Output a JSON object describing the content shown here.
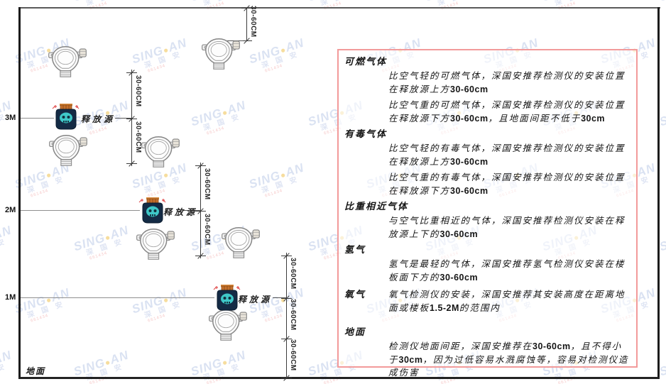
{
  "diagram": {
    "heights": [
      "3M",
      "2M",
      "1M"
    ],
    "ground_label": "地面",
    "dimension_label": "30-60CM",
    "release_source_label": "释放源"
  },
  "panel": {
    "border_color": "#f29a9a",
    "sections": [
      {
        "title": "可燃气体",
        "paragraphs": [
          "比空气轻的可燃气体，深国安推荐检测仪的安装位置在释放源上方30-60cm",
          "比空气重的可燃气体，深国安推荐检测仪的安装位置在释放源下方30-60cm，且地面间距不低于30cm"
        ]
      },
      {
        "title": "有毒气体",
        "paragraphs": [
          "比空气轻的有毒气体，深国安推荐检测仪的安装位置在释放源上方30-60cm",
          "比空气重的有毒气体，深国安推荐检测仪的安装位置在释放源下方30-60cm"
        ]
      },
      {
        "title": "比重相近气体",
        "paragraphs": [
          "与空气比重相近的气体，深国安推荐检测仪安装在释放源上下的30-60cm"
        ]
      },
      {
        "title": "氢气",
        "paragraphs": [
          "氢气是最轻的气体，深国安推荐氢气检测仪安装在楼板面下方的30-60cm"
        ]
      },
      {
        "title": "氧气",
        "inline": true,
        "paragraphs": [
          "氧气检测仪的安装，深国安推荐其安装高度在距离地面或楼板1.5-2M的范围内"
        ]
      },
      {
        "title": "地面",
        "paragraphs": [
          "检测仪地面间距，深国安推荐在30-60cm，且不得小于30cm，因为过低容易水溅腐蚀等，容易对检测仪造成伤害"
        ]
      }
    ]
  },
  "watermark": {
    "brand_left": "SING",
    "dot": "●",
    "brand_right": "AN",
    "cn": "深 国 安",
    "red_text": "661434"
  },
  "colors": {
    "panel_border": "#f29a9a",
    "source_body": "#142b45",
    "source_cap": "#c4702c",
    "source_face": "#3fc8c8",
    "sparkle": "#e25555"
  }
}
